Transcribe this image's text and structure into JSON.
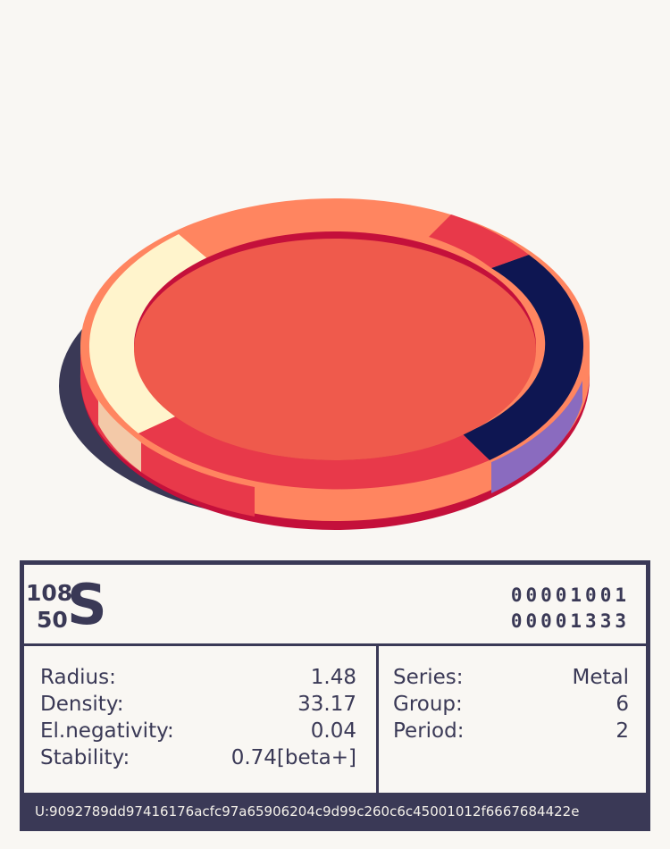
{
  "illustration": {
    "colors": {
      "face": "#ef5a4c",
      "rim": "#ff8560",
      "rim_light": "#fff4cc",
      "rim_dark": "#0e1652",
      "rim_red": "#e8394a",
      "edge": "#c4103b",
      "shadow": "#3a3956",
      "side_purple": "#8a6bbf"
    }
  },
  "card": {
    "mass_number": "108",
    "atomic_number": "50",
    "symbol": "S",
    "binary_top": "00001001",
    "binary_bottom": "00001333",
    "properties_left": [
      {
        "label": "Radius:",
        "value": "1.48"
      },
      {
        "label": "Density:",
        "value": "33.17"
      },
      {
        "label": "El.negativity:",
        "value": "0.04"
      },
      {
        "label": "Stability:",
        "value": "0.74[beta+]"
      }
    ],
    "properties_right": [
      {
        "label": "Series:",
        "value": "Metal"
      },
      {
        "label": "Group:",
        "value": "6"
      },
      {
        "label": "Period:",
        "value": "2"
      }
    ],
    "uid": "U:9092789dd97416176acfc97a65906204c9d99c260c6c45001012f6667684422e"
  }
}
